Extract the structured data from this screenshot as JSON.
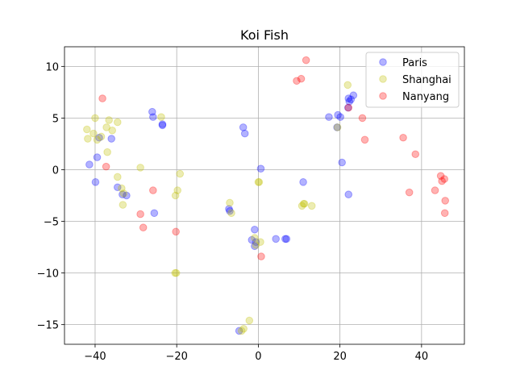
{
  "chart_data": {
    "type": "scatter",
    "title": "Koi Fish",
    "xlabel": "",
    "ylabel": "",
    "xlim": [
      -47.5,
      50.5
    ],
    "ylim": [
      -16.9,
      11.9
    ],
    "xticks": [
      -40,
      -20,
      0,
      20,
      40
    ],
    "yticks": [
      -15,
      -10,
      -5,
      0,
      5,
      10
    ],
    "xtick_labels": [
      "−40",
      "−20",
      "0",
      "20",
      "40"
    ],
    "ytick_labels": [
      "−15",
      "−10",
      "−5",
      "0",
      "5",
      "10"
    ],
    "grid": true,
    "legend_position": "top-right",
    "series": [
      {
        "name": "Paris",
        "color": "#0000ff",
        "points": [
          [
            -41.4,
            0.5
          ],
          [
            -39.9,
            -1.2
          ],
          [
            -39.5,
            1.2
          ],
          [
            -39,
            3.1
          ],
          [
            -36,
            3
          ],
          [
            -34.5,
            -1.7
          ],
          [
            -33.3,
            -2.4
          ],
          [
            -32.3,
            -2.5
          ],
          [
            -26,
            5.6
          ],
          [
            -25.8,
            5.1
          ],
          [
            -25.5,
            -4.2
          ],
          [
            -23.5,
            4.4
          ],
          [
            -23.5,
            4.3
          ],
          [
            -7.2,
            -3.8
          ],
          [
            -7,
            -4
          ],
          [
            -3.7,
            4.1
          ],
          [
            -3.3,
            3.5
          ],
          [
            -1.6,
            -6.8
          ],
          [
            -0.9,
            -7.4
          ],
          [
            -0.9,
            -5.8
          ],
          [
            -0.6,
            -7
          ],
          [
            0.6,
            0.1
          ],
          [
            4.3,
            -6.7
          ],
          [
            6.6,
            -6.7
          ],
          [
            6.9,
            -6.7
          ],
          [
            -4.7,
            -15.6
          ],
          [
            11,
            -1.2
          ],
          [
            17.3,
            5.1
          ],
          [
            19.5,
            5.3
          ],
          [
            20.1,
            5.1
          ],
          [
            20.5,
            0.7
          ],
          [
            22.1,
            6.9
          ],
          [
            22.3,
            6.6
          ],
          [
            22.7,
            6.8
          ],
          [
            23.3,
            7.2
          ],
          [
            22.1,
            -2.4
          ],
          [
            22,
            6.0
          ],
          [
            19.3,
            4.1
          ]
        ]
      },
      {
        "name": "Shanghai",
        "color": "#bfbf00",
        "points": [
          [
            -42,
            3.9
          ],
          [
            -41.8,
            3.0
          ],
          [
            -40.4,
            3.5
          ],
          [
            -40,
            5.0
          ],
          [
            -39.5,
            2.9
          ],
          [
            -38.5,
            3.2
          ],
          [
            -37.2,
            4.1
          ],
          [
            -37,
            1.7
          ],
          [
            -36.6,
            4.8
          ],
          [
            -35.8,
            3.8
          ],
          [
            -34.5,
            4.6
          ],
          [
            -34.5,
            -0.7
          ],
          [
            -33.5,
            -1.8
          ],
          [
            -33.2,
            -3.4
          ],
          [
            -33,
            -2.3
          ],
          [
            -28.9,
            0.2
          ],
          [
            -23.8,
            5.1
          ],
          [
            -20.3,
            -2.5
          ],
          [
            -19.8,
            -2.0
          ],
          [
            -19.2,
            -0.4
          ],
          [
            -20.4,
            -10.0
          ],
          [
            -20.1,
            -10.0
          ],
          [
            -7,
            -3.2
          ],
          [
            -6.6,
            -4.2
          ],
          [
            -3.6,
            -15.4
          ],
          [
            -4.1,
            -15.6
          ],
          [
            -2.2,
            -14.6
          ],
          [
            -0.9,
            -6.6
          ],
          [
            -0.6,
            -7.3
          ],
          [
            0,
            -1.2
          ],
          [
            0.2,
            -1.2
          ],
          [
            0.5,
            -7.0
          ],
          [
            10.7,
            -3.5
          ],
          [
            11.1,
            -3.3
          ],
          [
            11.3,
            -3.3
          ],
          [
            13.1,
            -3.5
          ],
          [
            21.9,
            8.2
          ],
          [
            19.4,
            4.1
          ]
        ]
      },
      {
        "name": "Nanyang",
        "color": "#ff0000",
        "points": [
          [
            -38.2,
            6.9
          ],
          [
            -37.3,
            0.3
          ],
          [
            -28.9,
            -4.3
          ],
          [
            -28.2,
            -5.6
          ],
          [
            -25.8,
            -2.0
          ],
          [
            -20.2,
            -6.0
          ],
          [
            0.7,
            -8.4
          ],
          [
            9.4,
            8.6
          ],
          [
            10.5,
            8.8
          ],
          [
            11.7,
            10.6
          ],
          [
            22.1,
            6.0
          ],
          [
            25.5,
            5.0
          ],
          [
            26.1,
            2.9
          ],
          [
            35.5,
            3.1
          ],
          [
            37,
            -2.2
          ],
          [
            38.5,
            1.5
          ],
          [
            43.3,
            -2.0
          ],
          [
            44.7,
            -0.6
          ],
          [
            45,
            -1.1
          ],
          [
            45.6,
            -0.9
          ],
          [
            45.7,
            -4.2
          ],
          [
            45.8,
            -3.0
          ]
        ]
      }
    ]
  }
}
